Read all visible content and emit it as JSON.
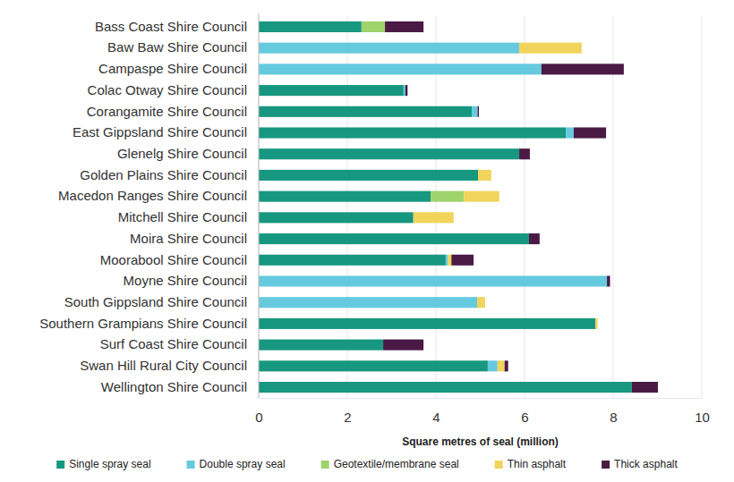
{
  "chart_data": {
    "type": "bar",
    "orientation": "horizontal",
    "stacked": true,
    "grid": true,
    "legend": "bottom",
    "x_label": "Square metres of seal (million)",
    "xlim": [
      0,
      10
    ],
    "xticks": [
      0,
      2,
      4,
      6,
      8,
      10
    ],
    "categories": [
      "Bass Coast Shire Council",
      "Baw Baw Shire Council",
      "Campaspe Shire Council",
      "Colac Otway Shire Council",
      "Corangamite Shire Council",
      "East Gippsland Shire Council",
      "Glenelg Shire Council",
      "Golden Plains Shire Council",
      "Macedon Ranges Shire Council",
      "Mitchell Shire Council",
      "Moira Shire Council",
      "Moorabool Shire Council",
      "Moyne Shire Council",
      "South Gippsland Shire Council",
      "Southern Grampians Shire Council",
      "Surf Coast Shire Council",
      "Swan Hill Rural City Council",
      "Wellington Shire Council"
    ],
    "series": [
      {
        "name": "Single spray seal",
        "color": "#17977f",
        "values": [
          2.32,
          0,
          0,
          3.27,
          4.81,
          6.93,
          5.88,
          4.95,
          3.88,
          3.49,
          6.1,
          4.22,
          0,
          0,
          7.6,
          2.81,
          5.17,
          8.42
        ]
      },
      {
        "name": "Double spray seal",
        "color": "#66cadf",
        "values": [
          0,
          5.88,
          6.38,
          0.04,
          0.13,
          0.18,
          0,
          0,
          0,
          0,
          0,
          0.05,
          7.86,
          4.93,
          0,
          0,
          0.22,
          0
        ]
      },
      {
        "name": "Geotextile/membrane seal",
        "color": "#9fd36b",
        "values": [
          0.53,
          0,
          0,
          0,
          0,
          0,
          0,
          0,
          0.75,
          0,
          0,
          0,
          0,
          0,
          0,
          0,
          0,
          0
        ]
      },
      {
        "name": "Thin asphalt",
        "color": "#f1d45c",
        "values": [
          0,
          1.41,
          0,
          0,
          0,
          0,
          0,
          0.3,
          0.8,
          0.91,
          0,
          0.08,
          0,
          0.18,
          0.05,
          0,
          0.16,
          0
        ]
      },
      {
        "name": "Thick asphalt",
        "color": "#4a1a45",
        "values": [
          0.87,
          0,
          1.86,
          0.05,
          0.03,
          0.73,
          0.24,
          0,
          0,
          0,
          0.24,
          0.5,
          0.07,
          0,
          0,
          0.91,
          0.08,
          0.59
        ]
      }
    ]
  }
}
